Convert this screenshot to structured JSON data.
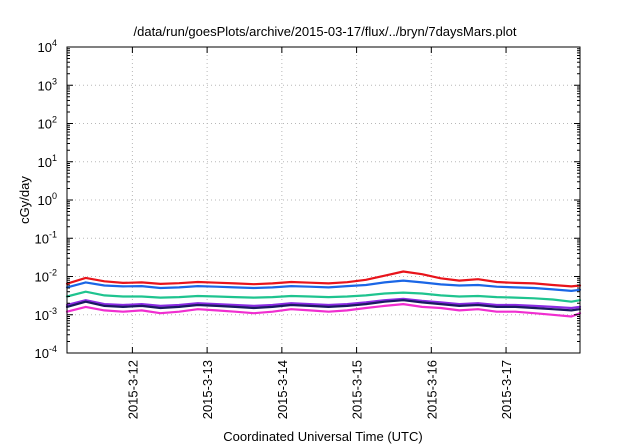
{
  "chart_data": {
    "type": "line",
    "title": "/data/run/goesPlots/archive/2015-03-17/flux/../bryn/7daysMars.plot",
    "xlabel": "Coordinated Universal Time (UTC)",
    "ylabel": "cGy/day",
    "y_scale": "log",
    "ylim": [
      0.0001,
      10000
    ],
    "y_ticks": [
      {
        "value": 0.0001,
        "base": "10",
        "exp": "-4"
      },
      {
        "value": 0.001,
        "base": "10",
        "exp": "-3"
      },
      {
        "value": 0.01,
        "base": "10",
        "exp": "-2"
      },
      {
        "value": 0.1,
        "base": "10",
        "exp": "-1"
      },
      {
        "value": 1,
        "base": "10",
        "exp": "0"
      },
      {
        "value": 10,
        "base": "10",
        "exp": "1"
      },
      {
        "value": 100,
        "base": "10",
        "exp": "2"
      },
      {
        "value": 1000,
        "base": "10",
        "exp": "3"
      },
      {
        "value": 10000,
        "base": "10",
        "exp": "4"
      }
    ],
    "xlim": [
      "2015-03-11 03:00",
      "2015-03-17 23:45"
    ],
    "x_ticks": [
      "2015-3-12",
      "2015-3-13",
      "2015-3-14",
      "2015-3-15",
      "2015-3-16",
      "2015-3-17"
    ],
    "grid": true,
    "x": [
      "2015-03-11 03:00",
      "2015-03-11 09:00",
      "2015-03-11 15:00",
      "2015-03-11 21:00",
      "2015-03-12 03:00",
      "2015-03-12 09:00",
      "2015-03-12 15:00",
      "2015-03-12 21:00",
      "2015-03-13 03:00",
      "2015-03-13 09:00",
      "2015-03-13 15:00",
      "2015-03-13 21:00",
      "2015-03-14 03:00",
      "2015-03-14 09:00",
      "2015-03-14 15:00",
      "2015-03-14 21:00",
      "2015-03-15 03:00",
      "2015-03-15 09:00",
      "2015-03-15 15:00",
      "2015-03-15 21:00",
      "2015-03-16 03:00",
      "2015-03-16 09:00",
      "2015-03-16 15:00",
      "2015-03-16 21:00",
      "2015-03-17 03:00",
      "2015-03-17 09:00",
      "2015-03-17 15:00",
      "2015-03-17 21:00",
      "2015-03-17 23:45"
    ],
    "series": [
      {
        "color": "#e8141b",
        "values": [
          0.0065,
          0.0092,
          0.0075,
          0.0068,
          0.007,
          0.0064,
          0.0067,
          0.0072,
          0.0069,
          0.0066,
          0.0063,
          0.0066,
          0.0072,
          0.0069,
          0.0066,
          0.0071,
          0.0082,
          0.0105,
          0.0135,
          0.0115,
          0.009,
          0.0078,
          0.0085,
          0.0072,
          0.0068,
          0.0066,
          0.006,
          0.0055,
          0.0058
        ]
      },
      {
        "color": "#1a66e6",
        "values": [
          0.0052,
          0.007,
          0.0058,
          0.0055,
          0.0056,
          0.005,
          0.0052,
          0.0056,
          0.0054,
          0.0052,
          0.005,
          0.0052,
          0.0056,
          0.0054,
          0.0052,
          0.0056,
          0.006,
          0.007,
          0.0078,
          0.007,
          0.0062,
          0.0058,
          0.006,
          0.0054,
          0.0052,
          0.005,
          0.0046,
          0.0042,
          0.0045
        ]
      },
      {
        "color": "#1fc48f",
        "values": [
          0.003,
          0.004,
          0.0032,
          0.003,
          0.003,
          0.0028,
          0.0029,
          0.0031,
          0.003,
          0.0029,
          0.0028,
          0.0029,
          0.0031,
          0.003,
          0.0029,
          0.003,
          0.0032,
          0.0036,
          0.0038,
          0.0036,
          0.0032,
          0.003,
          0.0031,
          0.0029,
          0.0028,
          0.0027,
          0.0025,
          0.0022,
          0.0024
        ]
      },
      {
        "color": "#8a2be2",
        "values": [
          0.0018,
          0.0024,
          0.0019,
          0.0018,
          0.0019,
          0.0017,
          0.0018,
          0.002,
          0.0019,
          0.0018,
          0.0017,
          0.0018,
          0.002,
          0.0019,
          0.0018,
          0.0019,
          0.0021,
          0.0024,
          0.0026,
          0.0023,
          0.0021,
          0.0019,
          0.002,
          0.0018,
          0.0018,
          0.0017,
          0.0016,
          0.0015,
          0.0016
        ]
      },
      {
        "color": "#1a1a60",
        "values": [
          0.0016,
          0.0022,
          0.0017,
          0.0016,
          0.0017,
          0.0015,
          0.0016,
          0.0018,
          0.0017,
          0.0016,
          0.0015,
          0.0016,
          0.0018,
          0.0017,
          0.0016,
          0.0017,
          0.0019,
          0.0022,
          0.0024,
          0.0021,
          0.0019,
          0.0017,
          0.0018,
          0.0016,
          0.0016,
          0.0015,
          0.0014,
          0.0013,
          0.0014
        ]
      },
      {
        "color": "#f02ed0",
        "values": [
          0.0012,
          0.0016,
          0.0013,
          0.0012,
          0.0013,
          0.0011,
          0.0012,
          0.0014,
          0.0013,
          0.0012,
          0.0011,
          0.0012,
          0.0014,
          0.0013,
          0.0012,
          0.0013,
          0.0015,
          0.0017,
          0.0019,
          0.0016,
          0.0015,
          0.0013,
          0.0014,
          0.0012,
          0.0012,
          0.0011,
          0.001,
          0.0009,
          0.0011
        ]
      }
    ]
  }
}
